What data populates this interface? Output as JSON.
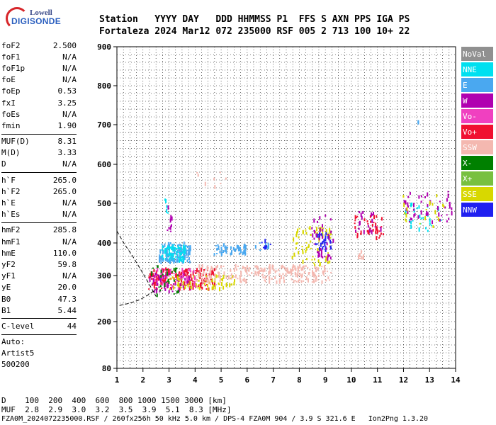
{
  "logo": {
    "line1": "Lowell",
    "line2": "DIGISONDE"
  },
  "header": {
    "line1": "Station   YYYY DAY   DDD HHMMSS P1  FFS S AXN PPS IGA PS",
    "line2": "Fortaleza 2024 Mar12 072 235000 RSF 005 2 713 100 10+ 22"
  },
  "scaled": {
    "groups": [
      [
        [
          "foF2",
          "2.500"
        ],
        [
          "foF1",
          "N/A"
        ],
        [
          "foF1p",
          "N/A"
        ],
        [
          "foE",
          "N/A"
        ],
        [
          "foEp",
          "0.53"
        ],
        [
          "fxI",
          "3.25"
        ],
        [
          "foEs",
          "N/A"
        ],
        [
          "fmin",
          "1.90"
        ]
      ],
      [
        [
          "MUF(D)",
          "8.31"
        ],
        [
          "M(D)",
          "3.33"
        ],
        [
          "D",
          "N/A"
        ]
      ],
      [
        [
          "h`F",
          "265.0"
        ],
        [
          "h`F2",
          "265.0"
        ],
        [
          "h`E",
          "N/A"
        ],
        [
          "h`Es",
          "N/A"
        ]
      ],
      [
        [
          "hmF2",
          "285.8"
        ],
        [
          "hmF1",
          "N/A"
        ],
        [
          "hmE",
          "110.0"
        ],
        [
          "yF2",
          "59.8"
        ],
        [
          "yF1",
          "N/A"
        ],
        [
          "yE",
          "20.0"
        ],
        [
          "B0",
          "47.3"
        ],
        [
          "B1",
          "5.44"
        ]
      ],
      [
        [
          "C-level",
          "44"
        ]
      ]
    ],
    "auto_lines": [
      "Auto:",
      "Artist5",
      "500200"
    ]
  },
  "legend": [
    {
      "label": "NoVal",
      "color": "#909090",
      "text": "#ffffff"
    },
    {
      "label": "NNE",
      "color": "#00e0f0",
      "text": "#ffffff"
    },
    {
      "label": "E",
      "color": "#4aa8f0",
      "text": "#ffffff"
    },
    {
      "label": "W",
      "color": "#b000b0",
      "text": "#ffffff"
    },
    {
      "label": "Vo-",
      "color": "#f040c0",
      "text": "#ffffff"
    },
    {
      "label": "Vo+",
      "color": "#f01030",
      "text": "#ffffff"
    },
    {
      "label": "SSW",
      "color": "#f4b8b0",
      "text": "#ffffff"
    },
    {
      "label": "X-",
      "color": "#008000",
      "text": "#ffffff"
    },
    {
      "label": "X+",
      "color": "#78c040",
      "text": "#ffffff"
    },
    {
      "label": "SSE",
      "color": "#d8d800",
      "text": "#ffffff"
    },
    {
      "label": "NNW",
      "color": "#2020f0",
      "text": "#ffffff"
    }
  ],
  "footer": {
    "d_line": "D    100  200  400  600  800 1000 1500 3000 [km]",
    "muf_line": "MUF  2.8  2.9  3.0  3.2  3.5  3.9  5.1  8.3 [MHz]",
    "info_line": "FZA0M_2024072235000.RSF / 260fx256h 50 kHz 5.0 km / DPS-4 FZA0M 904 / 3.9 S 321.6 E   Ion2Png 1.3.20"
  },
  "chart_data": {
    "type": "scatter",
    "x_ticks": [
      "1",
      "2",
      "3",
      "4",
      "5",
      "6",
      "7",
      "8",
      "9",
      "10",
      "11",
      "12",
      "13",
      "14"
    ],
    "y_ticks": [
      "80",
      "200",
      "300",
      "400",
      "500",
      "600",
      "700",
      "800",
      "900"
    ],
    "xlim": [
      1,
      14
    ],
    "ylim": [
      80,
      900
    ],
    "grid": true,
    "legend_position": "right",
    "profile_curve": {
      "x": [
        1.0,
        1.3,
        1.6,
        1.9,
        2.1,
        2.3,
        2.5
      ],
      "y": [
        430,
        395,
        360,
        320,
        295,
        275,
        255
      ]
    },
    "base_curve": {
      "x": [
        1.1,
        1.5,
        1.9,
        2.2,
        2.5
      ],
      "y": [
        235,
        240,
        248,
        258,
        270
      ]
    },
    "clusters": [
      {
        "series": "E",
        "x": [
          2.6,
          3.8
        ],
        "y": [
          340,
          400
        ],
        "n": 140
      },
      {
        "series": "NNE",
        "x": [
          2.7,
          3.6
        ],
        "y": [
          345,
          390
        ],
        "n": 60
      },
      {
        "series": "E",
        "x": [
          4.7,
          6.0
        ],
        "y": [
          365,
          395
        ],
        "n": 50
      },
      {
        "series": "Vo+",
        "x": [
          2.2,
          4.8
        ],
        "y": [
          270,
          320
        ],
        "n": 170
      },
      {
        "series": "W",
        "x": [
          2.2,
          3.8
        ],
        "y": [
          265,
          305
        ],
        "n": 60
      },
      {
        "series": "SSE",
        "x": [
          3.0,
          5.5
        ],
        "y": [
          270,
          300
        ],
        "n": 70
      },
      {
        "series": "SSW",
        "x": [
          4.0,
          9.2
        ],
        "y": [
          285,
          330
        ],
        "n": 220
      },
      {
        "series": "SSW",
        "x": [
          4.0,
          5.2
        ],
        "y": [
          540,
          580
        ],
        "n": 8
      },
      {
        "series": "Vo-",
        "x": [
          2.3,
          4.0
        ],
        "y": [
          270,
          320
        ],
        "n": 40
      },
      {
        "series": "X-",
        "x": [
          2.2,
          3.4
        ],
        "y": [
          250,
          330
        ],
        "n": 30
      },
      {
        "series": "SSE",
        "x": [
          7.7,
          9.2
        ],
        "y": [
          330,
          440
        ],
        "n": 70
      },
      {
        "series": "NNW",
        "x": [
          8.6,
          9.2
        ],
        "y": [
          375,
          425
        ],
        "n": 30
      },
      {
        "series": "W",
        "x": [
          8.4,
          9.3
        ],
        "y": [
          350,
          470
        ],
        "n": 40
      },
      {
        "series": "Vo+",
        "x": [
          10.1,
          11.2
        ],
        "y": [
          410,
          470
        ],
        "n": 40
      },
      {
        "series": "SSW",
        "x": [
          10.2,
          10.5
        ],
        "y": [
          350,
          375
        ],
        "n": 10
      },
      {
        "series": "W",
        "x": [
          10.1,
          11.2
        ],
        "y": [
          420,
          480
        ],
        "n": 20
      },
      {
        "series": "NNE",
        "x": [
          12.0,
          13.5
        ],
        "y": [
          430,
          500
        ],
        "n": 25
      },
      {
        "series": "W",
        "x": [
          12.0,
          13.9
        ],
        "y": [
          450,
          530
        ],
        "n": 45
      },
      {
        "series": "SSE",
        "x": [
          11.8,
          13.6
        ],
        "y": [
          440,
          520
        ],
        "n": 20
      },
      {
        "series": "E",
        "x": [
          6.2,
          6.8
        ],
        "y": [
          370,
          400
        ],
        "n": 8
      },
      {
        "series": "NNW",
        "x": [
          6.4,
          6.9
        ],
        "y": [
          380,
          405
        ],
        "n": 8
      },
      {
        "series": "W",
        "x": [
          2.9,
          3.1
        ],
        "y": [
          420,
          490
        ],
        "n": 10
      },
      {
        "series": "NNE",
        "x": [
          2.8,
          3.0
        ],
        "y": [
          440,
          515
        ],
        "n": 6
      },
      {
        "series": "E",
        "x": [
          12.5,
          12.55
        ],
        "y": [
          705,
          718
        ],
        "n": 3
      }
    ]
  }
}
